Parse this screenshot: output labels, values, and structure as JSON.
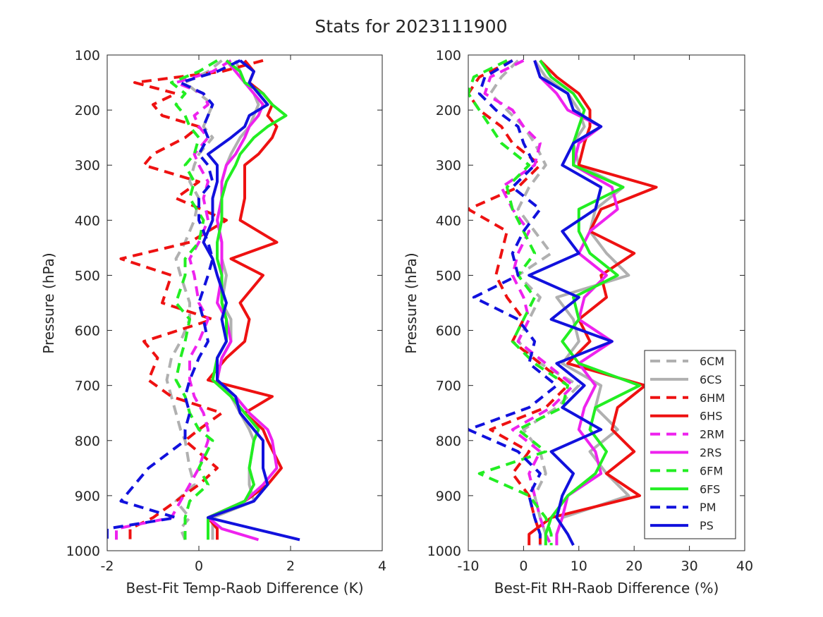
{
  "figure": {
    "title": "Stats for 2023111900"
  },
  "legend": {
    "placement": "bottom-right of right panel",
    "entries": [
      "6CM",
      "6CS",
      "6HM",
      "6HS",
      "2RM",
      "2RS",
      "6FM",
      "6FS",
      "PM",
      "PS"
    ]
  },
  "series_styles": [
    {
      "name": "6CM",
      "color": "#b0b0b0",
      "dash": true
    },
    {
      "name": "6CS",
      "color": "#b0b0b0",
      "dash": false
    },
    {
      "name": "6HM",
      "color": "#ee1111",
      "dash": true
    },
    {
      "name": "6HS",
      "color": "#ee1111",
      "dash": false
    },
    {
      "name": "2RM",
      "color": "#ee22ee",
      "dash": true
    },
    {
      "name": "2RS",
      "color": "#ee22ee",
      "dash": false
    },
    {
      "name": "6FM",
      "color": "#22ee22",
      "dash": true
    },
    {
      "name": "6FS",
      "color": "#22ee22",
      "dash": false
    },
    {
      "name": "PM",
      "color": "#1111dd",
      "dash": true
    },
    {
      "name": "PS",
      "color": "#1111dd",
      "dash": false
    }
  ],
  "chart_data": [
    {
      "type": "line",
      "title": "",
      "xlabel": "Best-Fit Temp-Raob Difference (K)",
      "ylabel": "Pressure (hPa)",
      "xlim": [
        -2,
        4
      ],
      "ylim": [
        100,
        1000
      ],
      "y_reversed": true,
      "xticks": [
        -2,
        0,
        2,
        4
      ],
      "yticks": [
        100,
        200,
        300,
        400,
        500,
        600,
        700,
        800,
        900,
        1000
      ],
      "grid": false,
      "y": [
        110,
        130,
        150,
        170,
        190,
        210,
        230,
        250,
        280,
        300,
        330,
        360,
        400,
        440,
        470,
        500,
        550,
        580,
        620,
        650,
        690,
        720,
        750,
        780,
        800,
        850,
        880,
        910,
        940,
        960,
        980
      ],
      "series": [
        {
          "name": "6CM",
          "values": [
            0.5,
            0.2,
            -0.3,
            0.0,
            0.3,
            0.2,
            0.1,
            0.3,
            0.0,
            -0.1,
            -0.2,
            0.0,
            -0.1,
            -0.3,
            -0.5,
            -0.4,
            -0.2,
            -0.2,
            -0.4,
            -0.6,
            -0.7,
            -0.6,
            -0.5,
            -0.4,
            -0.3,
            -0.2,
            -0.1,
            -0.5,
            -0.2,
            -0.4,
            -0.3
          ]
        },
        {
          "name": "6CS",
          "values": [
            0.8,
            0.9,
            1.0,
            1.2,
            1.3,
            1.2,
            1.1,
            0.9,
            0.7,
            0.6,
            0.5,
            0.5,
            0.4,
            0.5,
            0.5,
            0.6,
            0.5,
            0.7,
            0.7,
            0.5,
            0.4,
            0.7,
            0.9,
            1.1,
            1.2,
            1.1,
            1.1,
            1.2,
            0.3,
            0.3,
            0.3
          ]
        },
        {
          "name": "6HM",
          "values": [
            1.4,
            0.5,
            -1.4,
            -0.5,
            -1.0,
            -0.8,
            0.0,
            -0.3,
            -1.0,
            -1.2,
            0.0,
            -0.5,
            0.6,
            -0.2,
            -1.7,
            -0.6,
            -0.8,
            0.3,
            -1.2,
            -0.9,
            -1.1,
            -0.6,
            0.5,
            0.0,
            -0.3,
            0.4,
            0.0,
            -0.5,
            -1.0,
            -1.5,
            -1.5
          ]
        },
        {
          "name": "6HS",
          "values": [
            1.0,
            1.2,
            1.1,
            1.4,
            1.6,
            1.5,
            1.7,
            1.6,
            1.3,
            1.0,
            1.0,
            1.0,
            0.9,
            1.7,
            0.7,
            1.4,
            0.9,
            1.1,
            1.0,
            0.6,
            0.2,
            1.6,
            1.0,
            1.4,
            1.5,
            1.8,
            1.5,
            1.0,
            0.2,
            0.4,
            0.4
          ]
        },
        {
          "name": "2RM",
          "values": [
            0.7,
            0.3,
            -0.5,
            0.1,
            0.2,
            -0.1,
            0.0,
            0.2,
            -0.1,
            0.0,
            0.2,
            0.1,
            0.2,
            0.0,
            -0.2,
            -0.1,
            0.0,
            0.2,
            0.0,
            -0.2,
            -0.2,
            -0.1,
            0.1,
            0.2,
            0.2,
            0.0,
            -0.2,
            -0.4,
            -0.6,
            -1.8,
            -1.8
          ]
        },
        {
          "name": "2RS",
          "values": [
            0.6,
            0.8,
            1.0,
            1.2,
            1.4,
            1.3,
            1.1,
            1.0,
            0.8,
            0.6,
            0.5,
            0.5,
            0.4,
            0.5,
            0.5,
            0.5,
            0.4,
            0.6,
            0.7,
            0.5,
            0.4,
            0.8,
            1.1,
            1.5,
            1.6,
            1.7,
            1.4,
            1.0,
            0.2,
            0.5,
            1.3
          ]
        },
        {
          "name": "6FM",
          "values": [
            0.4,
            0.0,
            -0.6,
            -0.3,
            -0.5,
            -0.3,
            -0.2,
            0.0,
            -0.1,
            -0.3,
            -0.1,
            -0.2,
            0.1,
            0.0,
            -0.3,
            -0.3,
            -0.5,
            -0.2,
            -0.3,
            -0.4,
            -0.5,
            -0.3,
            -0.2,
            0.0,
            0.3,
            0.0,
            0.2,
            -0.2,
            -0.3,
            -0.3,
            -0.3
          ]
        },
        {
          "name": "6FS",
          "values": [
            0.6,
            0.9,
            1.0,
            1.4,
            1.6,
            1.9,
            1.5,
            1.2,
            0.9,
            0.8,
            0.6,
            0.5,
            0.5,
            0.4,
            0.4,
            0.5,
            0.5,
            0.6,
            0.6,
            0.4,
            0.3,
            0.7,
            1.0,
            1.3,
            1.2,
            1.1,
            1.2,
            1.0,
            0.2,
            0.2,
            0.2
          ]
        },
        {
          "name": "PM",
          "values": [
            0.9,
            0.4,
            -0.4,
            0.1,
            0.3,
            0.2,
            0.1,
            0.2,
            0.0,
            0.2,
            0.3,
            0.0,
            0.0,
            0.2,
            0.3,
            0.2,
            0.0,
            0.1,
            0.2,
            0.0,
            -0.2,
            -0.3,
            -0.2,
            -0.3,
            -0.3,
            -1.1,
            -1.4,
            -1.7,
            -0.5,
            -2.0,
            -2.0
          ]
        },
        {
          "name": "PS",
          "values": [
            0.9,
            1.2,
            1.1,
            1.3,
            1.5,
            1.1,
            1.0,
            0.7,
            0.2,
            0.4,
            0.4,
            0.3,
            0.3,
            0.1,
            0.3,
            0.4,
            0.6,
            0.5,
            0.6,
            0.4,
            0.4,
            0.8,
            0.9,
            1.2,
            1.4,
            1.4,
            1.5,
            1.2,
            0.2,
            1.2,
            2.2
          ]
        }
      ]
    },
    {
      "type": "line",
      "title": "",
      "xlabel": "Best-Fit RH-Raob Difference (%)",
      "ylabel": "Pressure (hPa)",
      "xlim": [
        -10,
        40
      ],
      "ylim": [
        100,
        1000
      ],
      "y_reversed": true,
      "xticks": [
        -10,
        0,
        10,
        20,
        30,
        40
      ],
      "yticks": [
        100,
        200,
        300,
        400,
        500,
        600,
        700,
        800,
        900,
        1000
      ],
      "grid": false,
      "y": [
        110,
        140,
        170,
        200,
        230,
        260,
        300,
        340,
        380,
        420,
        460,
        500,
        540,
        580,
        620,
        660,
        700,
        740,
        780,
        820,
        860,
        900,
        940,
        970,
        990
      ],
      "series": [
        {
          "name": "6CM",
          "values": [
            -1.0,
            -4.0,
            -6.0,
            -3.0,
            0.0,
            2.0,
            4.0,
            1.0,
            -1.0,
            2.0,
            5.0,
            -1.0,
            3.0,
            1.0,
            -1.0,
            3.0,
            10.0,
            6.0,
            0.0,
            3.0,
            4.0,
            2.0,
            3.0,
            4.0,
            4.0
          ]
        },
        {
          "name": "6CS",
          "values": [
            2.0,
            4.0,
            8.0,
            10.0,
            11.0,
            9.0,
            10.0,
            18.0,
            13.0,
            12.0,
            15.0,
            19.0,
            6.0,
            9.0,
            10.0,
            7.0,
            14.0,
            13.0,
            17.0,
            12.0,
            15.0,
            19.0,
            7.0,
            6.0,
            6.0
          ]
        },
        {
          "name": "6HM",
          "values": [
            -2.0,
            -8.0,
            -10.0,
            -8.0,
            -4.0,
            -2.0,
            3.0,
            -1.0,
            -10.0,
            -3.0,
            -4.0,
            -5.0,
            -3.0,
            0.0,
            -2.0,
            3.0,
            8.0,
            4.0,
            -6.0,
            1.0,
            -2.0,
            1.0,
            2.0,
            3.0,
            3.0
          ]
        },
        {
          "name": "6HS",
          "values": [
            3.0,
            6.0,
            10.0,
            12.0,
            12.0,
            11.0,
            10.0,
            24.0,
            14.0,
            12.0,
            20.0,
            14.0,
            15.0,
            10.0,
            12.0,
            8.0,
            22.0,
            17.0,
            16.0,
            20.0,
            15.0,
            21.0,
            5.0,
            1.0,
            1.0
          ]
        },
        {
          "name": "2RM",
          "values": [
            0.0,
            -6.0,
            -7.0,
            -2.0,
            0.0,
            3.0,
            2.0,
            -4.0,
            -2.0,
            1.0,
            -1.0,
            -2.0,
            0.0,
            1.0,
            -1.0,
            4.0,
            9.0,
            5.0,
            -2.0,
            3.0,
            1.0,
            2.0,
            3.0,
            4.0,
            5.0
          ]
        },
        {
          "name": "2RS",
          "values": [
            2.0,
            3.0,
            6.0,
            8.0,
            14.0,
            10.0,
            9.0,
            16.0,
            17.0,
            12.0,
            10.0,
            15.0,
            11.0,
            10.0,
            16.0,
            10.0,
            13.0,
            11.0,
            10.0,
            13.0,
            14.0,
            8.0,
            7.0,
            6.0,
            6.0
          ]
        },
        {
          "name": "6FM",
          "values": [
            -3.0,
            -9.0,
            -10.0,
            -8.0,
            -6.0,
            -4.0,
            1.0,
            -3.0,
            -2.0,
            0.0,
            2.0,
            -1.0,
            2.0,
            0.0,
            -2.0,
            2.0,
            8.0,
            7.0,
            -1.0,
            4.0,
            -8.0,
            1.0,
            4.0,
            5.0,
            5.0
          ]
        },
        {
          "name": "6FS",
          "values": [
            3.0,
            5.0,
            9.0,
            11.0,
            10.0,
            9.0,
            9.0,
            18.0,
            10.0,
            10.0,
            12.0,
            17.0,
            9.0,
            10.0,
            7.0,
            10.0,
            21.0,
            13.0,
            12.0,
            15.0,
            13.0,
            8.0,
            5.0,
            4.0,
            4.0
          ]
        },
        {
          "name": "PM",
          "values": [
            -2.0,
            -7.0,
            -8.0,
            -5.0,
            -1.0,
            0.0,
            2.0,
            -2.0,
            3.0,
            0.0,
            -2.0,
            -1.0,
            -9.0,
            -1.0,
            2.0,
            1.0,
            6.0,
            1.0,
            -10.0,
            -1.0,
            3.0,
            1.0,
            2.0,
            3.0,
            3.0
          ]
        },
        {
          "name": "PS",
          "values": [
            2.0,
            3.0,
            8.0,
            9.0,
            14.0,
            9.0,
            7.0,
            14.0,
            13.0,
            7.0,
            10.0,
            1.0,
            10.0,
            5.0,
            16.0,
            6.0,
            11.0,
            7.0,
            14.0,
            5.0,
            9.0,
            7.0,
            6.0,
            8.0,
            9.0
          ]
        }
      ]
    }
  ]
}
